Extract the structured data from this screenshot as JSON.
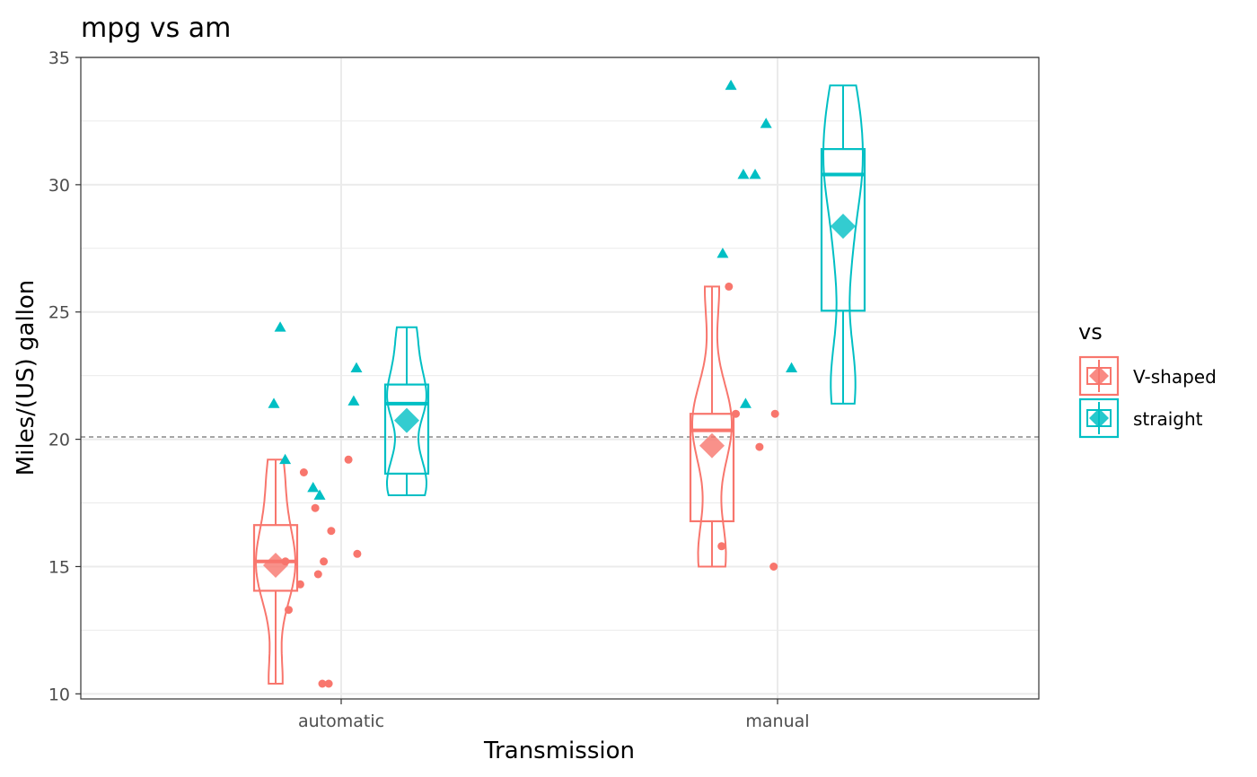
{
  "chart_data": {
    "type": "violin-box-jitter",
    "title": "mpg vs am",
    "xlabel": "Transmission",
    "ylabel": "Miles/(US) gallon",
    "categories": [
      "automatic",
      "manual"
    ],
    "ylim": [
      9.8,
      35.0
    ],
    "yticks": [
      10,
      15,
      20,
      25,
      30,
      35
    ],
    "reference_line": 20.09,
    "grid": true,
    "legend": {
      "title": "vs",
      "position": "right",
      "entries": [
        "V-shaped",
        "straight"
      ]
    },
    "series": [
      {
        "name": "V-shaped",
        "color": "#F8766D",
        "groups": [
          {
            "category": "automatic",
            "min": 10.4,
            "q1": 14.05,
            "median": 15.2,
            "q3": 16.63,
            "max": 19.2,
            "mean": 15.05,
            "points": [
              10.4,
              10.4,
              13.3,
              14.3,
              14.7,
              15.2,
              15.2,
              15.5,
              16.4,
              17.3,
              18.7,
              19.2
            ]
          },
          {
            "category": "manual",
            "min": 15.0,
            "q1": 16.78,
            "median": 20.35,
            "q3": 21.0,
            "max": 26.0,
            "mean": 19.75,
            "points": [
              15.0,
              15.8,
              19.7,
              21.0,
              21.0,
              26.0
            ]
          }
        ]
      },
      {
        "name": "straight",
        "color": "#00BFC4",
        "groups": [
          {
            "category": "automatic",
            "min": 17.8,
            "q1": 18.65,
            "median": 21.4,
            "q3": 22.15,
            "max": 24.4,
            "mean": 20.74,
            "points": [
              17.8,
              18.1,
              19.2,
              21.4,
              21.5,
              22.8,
              24.4
            ]
          },
          {
            "category": "manual",
            "min": 21.4,
            "q1": 25.05,
            "median": 30.4,
            "q3": 31.4,
            "max": 33.9,
            "mean": 28.37,
            "points": [
              21.4,
              22.8,
              27.3,
              30.4,
              30.4,
              32.4,
              33.9
            ]
          }
        ]
      }
    ]
  }
}
